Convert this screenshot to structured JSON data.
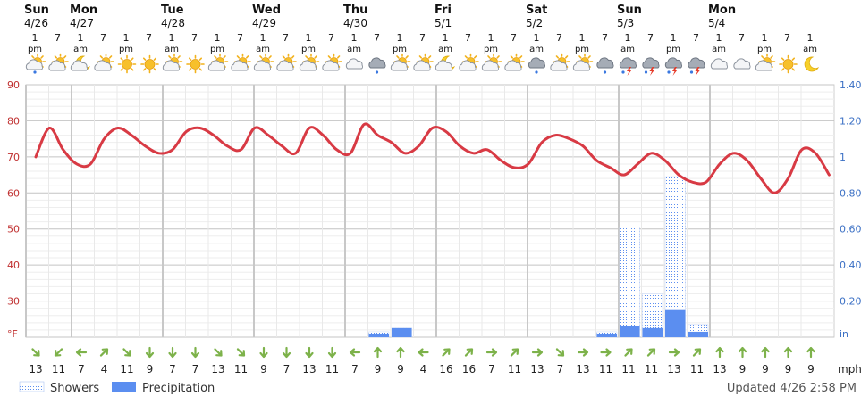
{
  "chart_data": {
    "type": "line",
    "days": [
      {
        "name": "Sun",
        "date": "4/26",
        "slot": 0
      },
      {
        "name": "Mon",
        "date": "4/27",
        "slot": 2
      },
      {
        "name": "Tue",
        "date": "4/28",
        "slot": 6
      },
      {
        "name": "Wed",
        "date": "4/29",
        "slot": 10
      },
      {
        "name": "Thu",
        "date": "4/30",
        "slot": 14
      },
      {
        "name": "Fri",
        "date": "5/1",
        "slot": 18
      },
      {
        "name": "Sat",
        "date": "5/2",
        "slot": 22
      },
      {
        "name": "Sun",
        "date": "5/3",
        "slot": 26
      },
      {
        "name": "Mon",
        "date": "5/4",
        "slot": 30
      }
    ],
    "hours": [
      {
        "h": "1",
        "ap": "pm"
      },
      {
        "h": "7",
        "ap": ""
      },
      {
        "h": "1",
        "ap": "am"
      },
      {
        "h": "7",
        "ap": ""
      },
      {
        "h": "1",
        "ap": "pm"
      },
      {
        "h": "7",
        "ap": ""
      },
      {
        "h": "1",
        "ap": "am"
      },
      {
        "h": "7",
        "ap": ""
      },
      {
        "h": "1",
        "ap": "pm"
      },
      {
        "h": "7",
        "ap": ""
      },
      {
        "h": "1",
        "ap": "am"
      },
      {
        "h": "7",
        "ap": ""
      },
      {
        "h": "1",
        "ap": "pm"
      },
      {
        "h": "7",
        "ap": ""
      },
      {
        "h": "1",
        "ap": "am"
      },
      {
        "h": "7",
        "ap": ""
      },
      {
        "h": "1",
        "ap": "pm"
      },
      {
        "h": "7",
        "ap": ""
      },
      {
        "h": "1",
        "ap": "am"
      },
      {
        "h": "7",
        "ap": ""
      },
      {
        "h": "1",
        "ap": "pm"
      },
      {
        "h": "7",
        "ap": ""
      },
      {
        "h": "1",
        "ap": "am"
      },
      {
        "h": "7",
        "ap": ""
      },
      {
        "h": "1",
        "ap": "pm"
      },
      {
        "h": "7",
        "ap": ""
      },
      {
        "h": "1",
        "ap": "am"
      },
      {
        "h": "7",
        "ap": ""
      },
      {
        "h": "1",
        "ap": "pm"
      },
      {
        "h": "7",
        "ap": ""
      },
      {
        "h": "1",
        "ap": "am"
      },
      {
        "h": "7",
        "ap": ""
      },
      {
        "h": "1",
        "ap": "pm"
      },
      {
        "h": "7",
        "ap": ""
      },
      {
        "h": "1",
        "ap": "am"
      }
    ],
    "icons": [
      "partly-cloudy-showers-icon",
      "partly-cloudy-icon",
      "moon-partly-cloudy-icon",
      "partly-cloudy-icon",
      "sunny-icon",
      "sunny-icon",
      "partly-cloudy-icon",
      "sunny-icon",
      "partly-cloudy-icon",
      "partly-cloudy-icon",
      "partly-cloudy-icon",
      "partly-cloudy-icon",
      "partly-cloudy-icon",
      "partly-cloudy-icon",
      "cloudy-icon",
      "showers-icon",
      "partly-cloudy-icon",
      "partly-cloudy-icon",
      "moon-partly-cloudy-icon",
      "partly-cloudy-icon",
      "partly-cloudy-icon",
      "partly-cloudy-icon",
      "showers-icon",
      "partly-cloudy-icon",
      "partly-cloudy-icon",
      "showers-icon",
      "thunderstorm-icon",
      "thunderstorm-icon",
      "thunderstorm-icon",
      "thunderstorm-icon",
      "cloudy-icon",
      "cloudy-icon",
      "partly-cloudy-icon",
      "sunny-icon",
      "moon-icon"
    ],
    "temperature": [
      70,
      78,
      72,
      68,
      68,
      75,
      78,
      76,
      73,
      71,
      72,
      77,
      78,
      76,
      73,
      72,
      78,
      76,
      73,
      71,
      78,
      76,
      72,
      71,
      79,
      76,
      74,
      71,
      73,
      78,
      77,
      73,
      71,
      72,
      69,
      67,
      68,
      74,
      76,
      75,
      73,
      69,
      67,
      65,
      68,
      71,
      69,
      65,
      63,
      63,
      68,
      71,
      69,
      64,
      60,
      64,
      72,
      71,
      65
    ],
    "temperature_first_slot": 0,
    "temperature_step_slots": 0.6,
    "precipitation": [
      0,
      0,
      0,
      0,
      0,
      0,
      0,
      0,
      0,
      0,
      0,
      0,
      0,
      0,
      0,
      0.02,
      0.05,
      0,
      0,
      0,
      0,
      0,
      0,
      0,
      0,
      0.02,
      0.06,
      0.05,
      0.15,
      0.03,
      0,
      0,
      0,
      0,
      0
    ],
    "showers": [
      0,
      0,
      0,
      0,
      0,
      0,
      0,
      0,
      0,
      0,
      0,
      0,
      0,
      0,
      0,
      0.03,
      0.05,
      0,
      0,
      0,
      0,
      0,
      0,
      0,
      0,
      0.03,
      0.61,
      0.24,
      0.89,
      0.07,
      0,
      0,
      0,
      0,
      0
    ],
    "wind_direction_deg": [
      315,
      45,
      90,
      225,
      315,
      0,
      0,
      0,
      315,
      315,
      0,
      0,
      0,
      0,
      90,
      180,
      180,
      90,
      225,
      225,
      270,
      225,
      270,
      315,
      270,
      270,
      225,
      225,
      270,
      225,
      180,
      180,
      180,
      180,
      180
    ],
    "wind_speed": [
      "13",
      "11",
      "7",
      "4",
      "11",
      "9",
      "7",
      "7",
      "13",
      "11",
      "9",
      "7",
      "13",
      "11",
      "7",
      "9",
      "9",
      "4",
      "16",
      "16",
      "7",
      "11",
      "13",
      "7",
      "13",
      "11",
      "11",
      "11",
      "13",
      "11",
      "13",
      "9",
      "9",
      "9",
      "9"
    ],
    "wind_unit": "mph",
    "y_left": {
      "min": 20,
      "max": 90,
      "ticks": [
        "90",
        "80",
        "70",
        "60",
        "50",
        "40",
        "30",
        "°F"
      ]
    },
    "y_right": {
      "min": 0,
      "max": 1.4,
      "ticks": [
        "1.40",
        "1.20",
        "1",
        "0.80",
        "0.60",
        "0.40",
        "0.20",
        "in"
      ]
    },
    "legend": [
      {
        "label": "Showers",
        "style": "dotted"
      },
      {
        "label": "Precipitation",
        "style": "solid"
      }
    ],
    "updated": "Updated 4/26 2:58 PM",
    "colors": {
      "temperature": "#d83a44",
      "precipitation": "#5b8ef0",
      "showers": "#5b8ef0",
      "wind": "#7db24a"
    },
    "grid": true
  }
}
